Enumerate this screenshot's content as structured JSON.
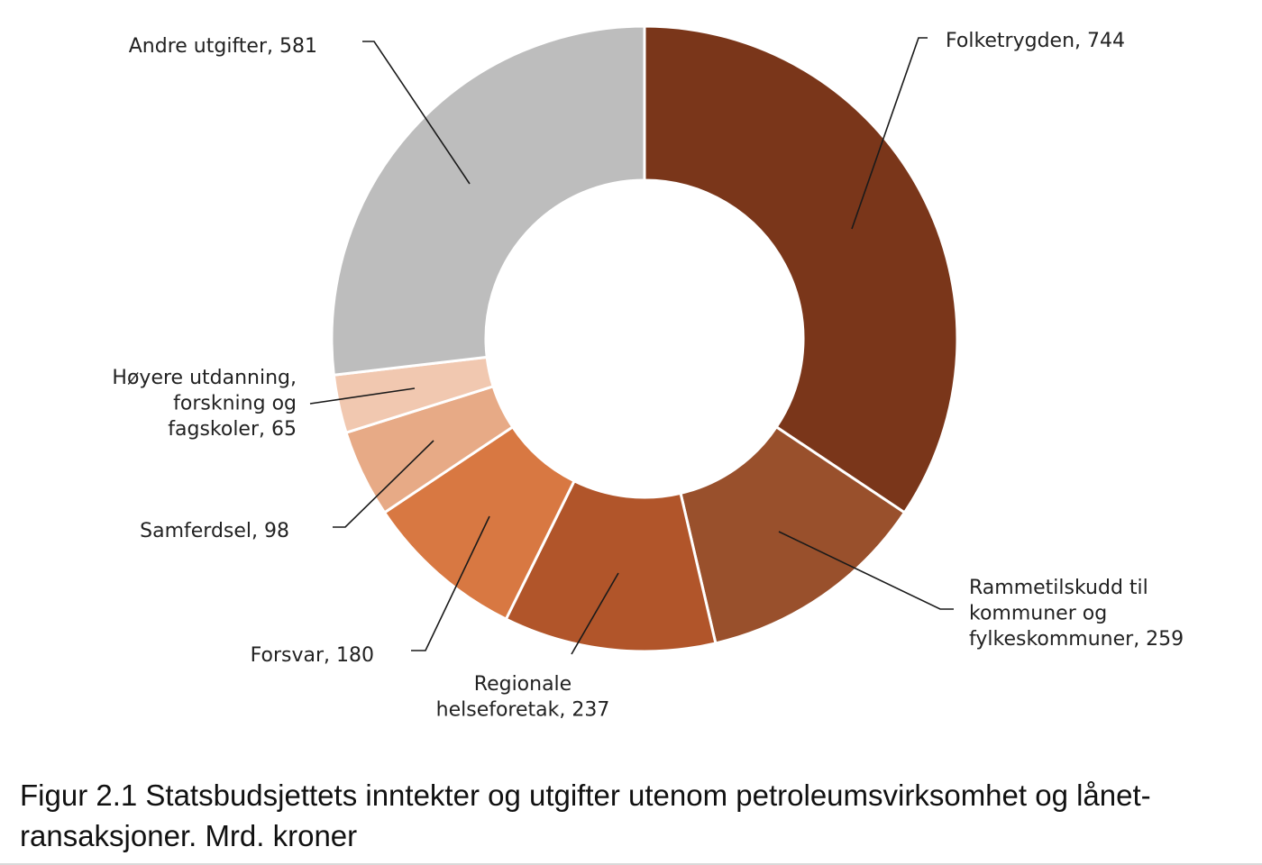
{
  "chart_data": {
    "type": "pie",
    "variant": "donut",
    "title": "",
    "unit": "Mrd. kroner",
    "slices": [
      {
        "label": "Folketrygden,  744",
        "name": "Folketrygden",
        "value": 744,
        "color": "#7a361a"
      },
      {
        "label": "Rammetilskudd til kommuner og fylkeskommuner,  259",
        "name": "Rammetilskudd til kommuner og fylkeskommuner",
        "value": 259,
        "color": "#99502c"
      },
      {
        "label": "Regionale helseforetak,  237",
        "name": "Regionale helseforetak",
        "value": 237,
        "color": "#b1552a"
      },
      {
        "label": "Forsvar, 180",
        "name": "Forsvar",
        "value": 180,
        "color": "#d87842"
      },
      {
        "label": "Samferdsel, 98",
        "name": "Samferdsel",
        "value": 98,
        "color": "#e7aa86"
      },
      {
        "label": "Høyere utdanning, forskning og fagskoler, 65",
        "name": "Høyere utdanning, forskning og fagskoler",
        "value": 65,
        "color": "#f1c8b0"
      },
      {
        "label": "Andre utgifter, 581",
        "name": "Andre utgifter",
        "value": 581,
        "color": "#bdbdbd"
      }
    ],
    "label_lines": [
      [
        "Folketrygden,  744"
      ],
      [
        "Rammetilskudd til",
        "kommuner og",
        "fylkeskommuner,  259"
      ],
      [
        "Regionale",
        "helseforetak,  237"
      ],
      [
        "Forsvar, 180"
      ],
      [
        "Samferdsel, 98"
      ],
      [
        "Høyere utdanning,",
        "forskning og",
        "fagskoler, 65"
      ],
      [
        "Andre utgifter, 581"
      ]
    ],
    "start_angle_deg": 0,
    "direction": "clockwise"
  },
  "caption": "Figur 2.1 Statsbudsjettets inntekter og utgifter utenom petroleumsvirksomhet og lånet-ransaksjoner. Mrd. kroner"
}
